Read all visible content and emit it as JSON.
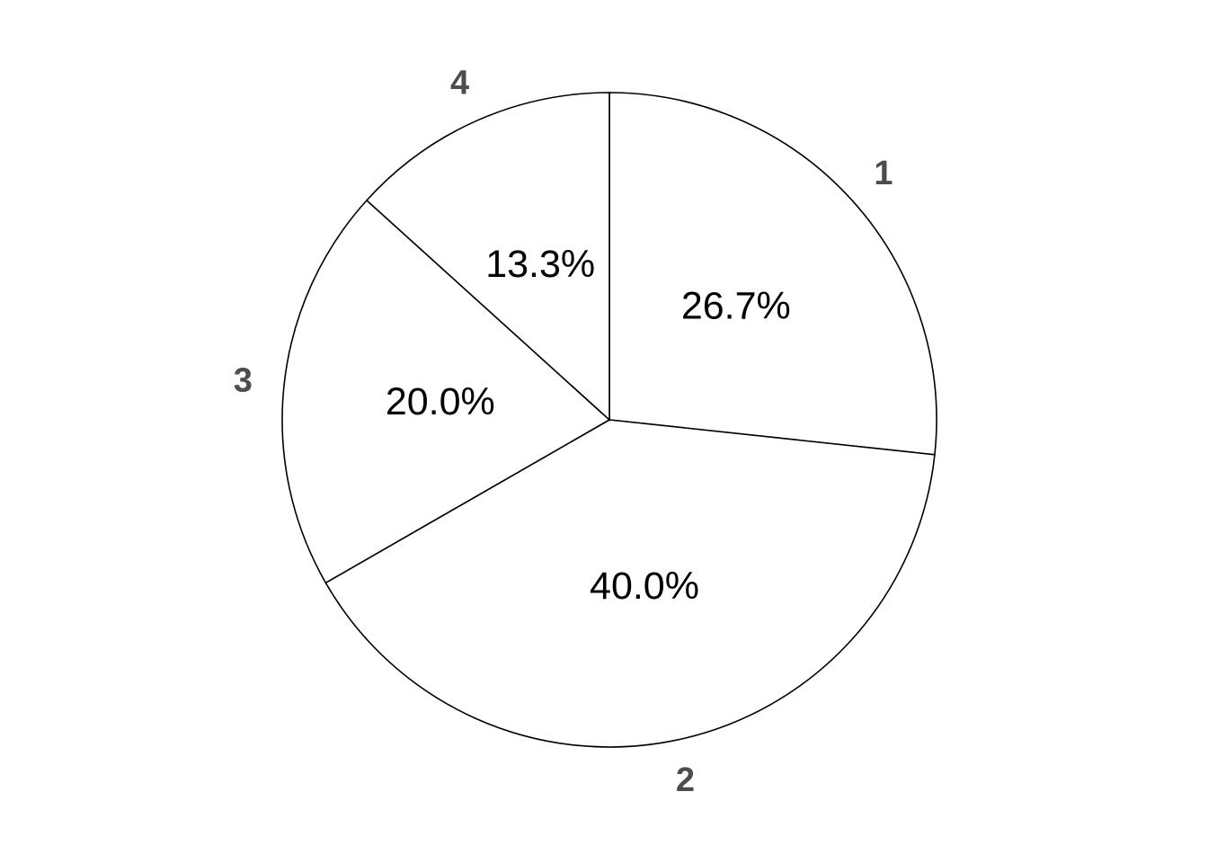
{
  "chart_data": {
    "type": "pie",
    "categories": [
      "1",
      "2",
      "3",
      "4"
    ],
    "values": [
      26.7,
      40.0,
      20.0,
      13.3
    ],
    "value_labels": [
      "26.7%",
      "40.0%",
      "20.0%",
      "13.3%"
    ],
    "title": "",
    "legend": "none",
    "start_angle_deg": 0,
    "direction": "clockwise-from-top",
    "colors": {
      "slice_fill": "#ffffff",
      "slice_stroke": "#000000",
      "value_label": "#000000",
      "category_label": "#4d4d4d"
    }
  }
}
